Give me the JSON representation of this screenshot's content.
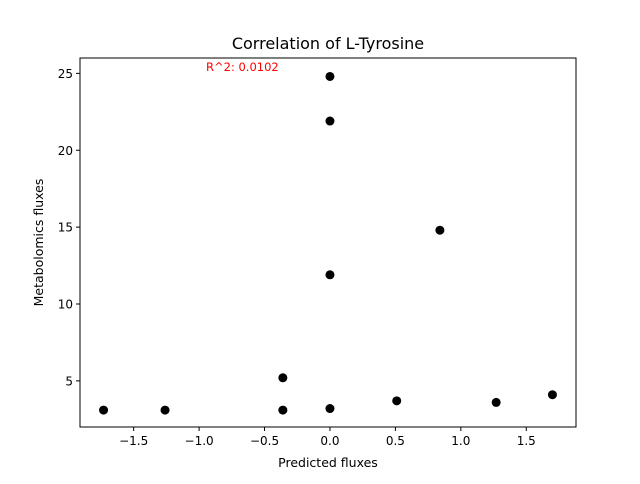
{
  "chart_data": {
    "type": "scatter",
    "title": "Correlation of L-Tyrosine",
    "xlabel": "Predicted fluxes",
    "ylabel": "Metabolomics fluxes",
    "annotation": "R^2: 0.0102",
    "annotation_color": "#ff0000",
    "marker_color": "#000000",
    "xlim": [
      -1.91,
      1.88
    ],
    "ylim": [
      2.0,
      26.0
    ],
    "xticks": [
      -1.5,
      -1.0,
      -0.5,
      0.0,
      0.5,
      1.0,
      1.5
    ],
    "xtick_labels": [
      "−1.5",
      "−1.0",
      "−0.5",
      "0.0",
      "0.5",
      "1.0",
      "1.5"
    ],
    "yticks": [
      5,
      10,
      15,
      20,
      25
    ],
    "ytick_labels": [
      "5",
      "10",
      "15",
      "20",
      "25"
    ],
    "grid": false,
    "points": [
      {
        "x": -1.73,
        "y": 3.1
      },
      {
        "x": -1.26,
        "y": 3.1
      },
      {
        "x": -0.36,
        "y": 5.2
      },
      {
        "x": -0.36,
        "y": 3.1
      },
      {
        "x": 0.0,
        "y": 24.8
      },
      {
        "x": 0.0,
        "y": 21.9
      },
      {
        "x": 0.0,
        "y": 11.9
      },
      {
        "x": 0.0,
        "y": 3.2
      },
      {
        "x": 0.51,
        "y": 3.7
      },
      {
        "x": 0.84,
        "y": 14.8
      },
      {
        "x": 1.27,
        "y": 3.6
      },
      {
        "x": 1.7,
        "y": 4.1
      }
    ]
  }
}
